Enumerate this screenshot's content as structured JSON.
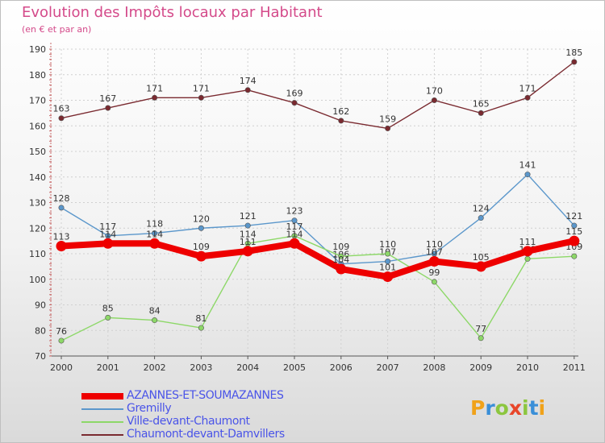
{
  "chart_data": {
    "type": "line",
    "title": "Evolution des Impôts locaux par Habitant",
    "subtitle": "(en € et par an)",
    "x": [
      "2000",
      "2001",
      "2002",
      "2003",
      "2004",
      "2005",
      "2006",
      "2007",
      "2008",
      "2009",
      "2010",
      "2011"
    ],
    "ylim": [
      70,
      190
    ],
    "yticks": [
      70,
      80,
      90,
      100,
      110,
      120,
      130,
      140,
      150,
      160,
      170,
      180,
      190
    ],
    "legend_position": "bottom-left",
    "series": [
      {
        "name": "Chaumont-devant-Damvillers",
        "color": "#7a2a30",
        "values": [
          163,
          167,
          171,
          171,
          174,
          169,
          162,
          159,
          170,
          165,
          171,
          185
        ],
        "labels": [
          "163",
          "167",
          "171",
          "171",
          "174",
          "169",
          "162",
          "159",
          "170",
          "165",
          "171",
          "185"
        ]
      },
      {
        "name": "Gremilly",
        "color": "#5b97cb",
        "values": [
          128,
          117,
          118,
          120,
          121,
          123,
          106,
          107,
          110,
          124,
          141,
          121
        ],
        "labels": [
          "128",
          "117",
          "118",
          "120",
          "121",
          "123",
          "106",
          "107",
          "110",
          "124",
          "141",
          "121"
        ]
      },
      {
        "name": "Ville-devant-Chaumont",
        "color": "#8dd868",
        "values": [
          76,
          85,
          84,
          81,
          114,
          117,
          109,
          110,
          99,
          77,
          108,
          109
        ],
        "labels": [
          "76",
          "85",
          "84",
          "81",
          "114",
          "117",
          "109",
          "110",
          "99",
          "77",
          "108",
          "109"
        ]
      },
      {
        "name": "AZANNES-ET-SOUMAZANNES",
        "color": "#ee0000",
        "values": [
          113,
          114,
          114,
          109,
          111,
          114,
          104,
          101,
          107,
          105,
          111,
          115
        ],
        "labels": [
          "113",
          "114",
          "114",
          "109",
          "111",
          "114",
          "104",
          "101",
          "107",
          "105",
          "111",
          "115"
        ]
      }
    ],
    "legend": [
      {
        "name": "AZANNES-ET-SOUMAZANNES",
        "color": "#ee0000",
        "thick": true
      },
      {
        "name": "Gremilly",
        "color": "#5b97cb",
        "thick": false
      },
      {
        "name": "Ville-devant-Chaumont",
        "color": "#8dd868",
        "thick": false
      },
      {
        "name": "Chaumont-devant-Damvillers",
        "color": "#7a2a30",
        "thick": false
      }
    ]
  },
  "logo": {
    "letters": [
      "P",
      "r",
      "o",
      "x",
      "i",
      "t",
      "i"
    ],
    "colors": [
      "#f0a21a",
      "#3a8fd8",
      "#8cc63f",
      "#e8462a",
      "#8cc63f",
      "#3a8fd8",
      "#f0a21a"
    ]
  }
}
